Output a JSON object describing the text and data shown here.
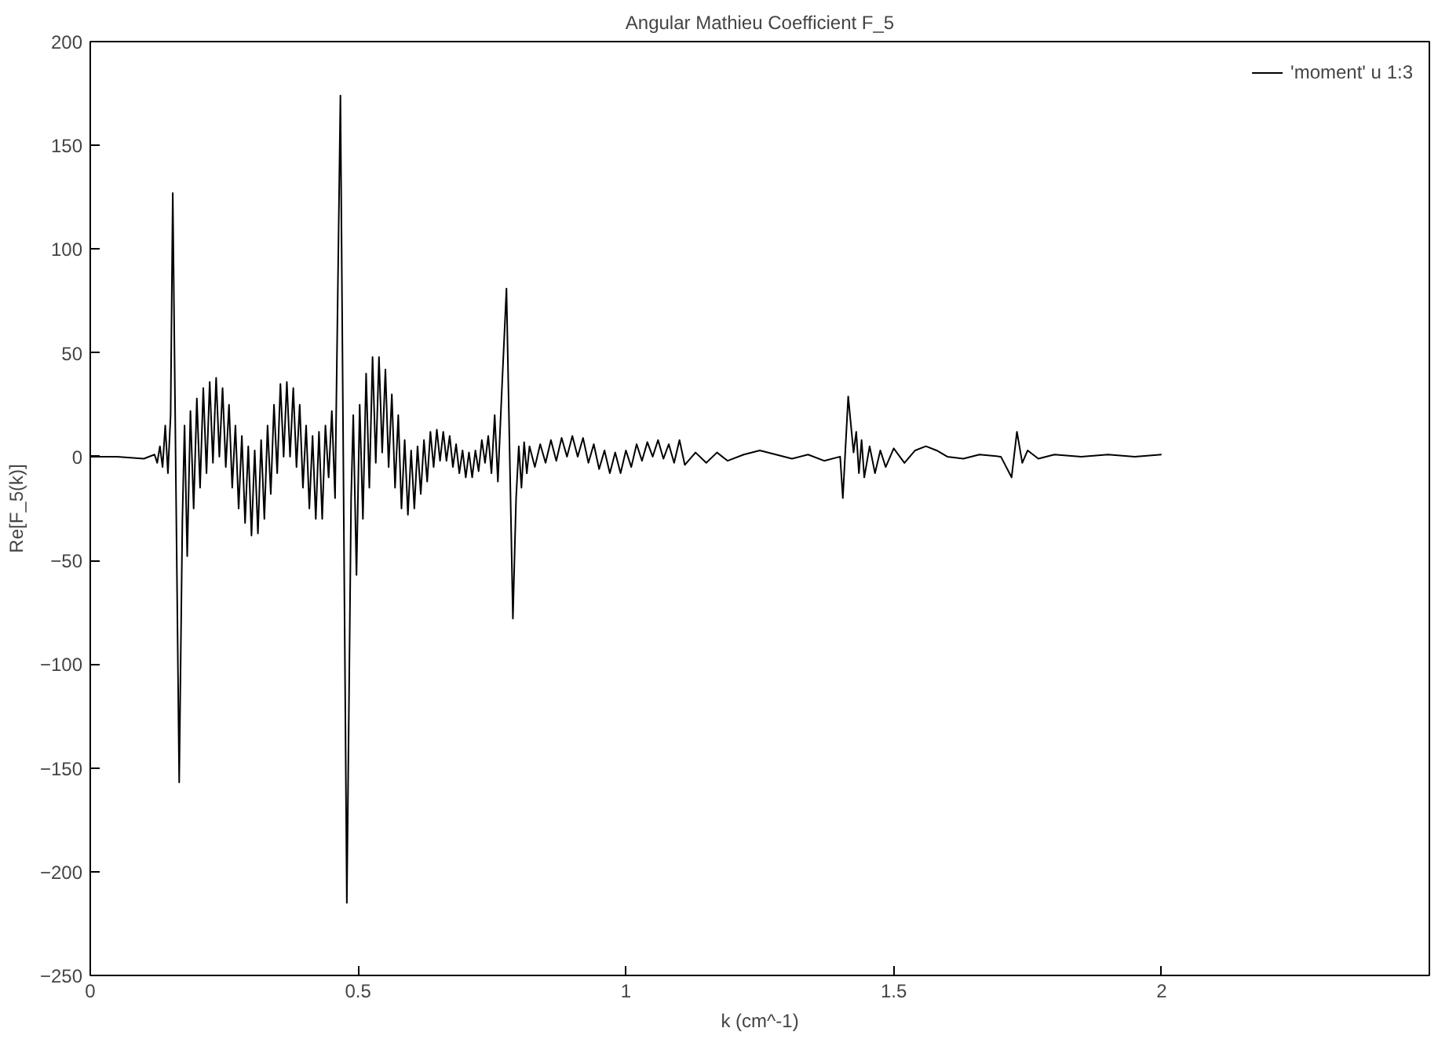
{
  "chart_data": {
    "type": "line",
    "title": "Angular Mathieu Coefficient F_5",
    "xlabel": "k (cm^-1)",
    "ylabel": "Re[F_5(k)]",
    "xlim": [
      0,
      2.5
    ],
    "xticks": [
      0,
      0.5,
      1,
      1.5,
      2
    ],
    "ylim": [
      -250,
      200
    ],
    "yticks": [
      -250,
      -200,
      -150,
      -100,
      -50,
      0,
      50,
      100,
      150,
      200
    ],
    "grid": false,
    "legend": "top right",
    "marker": "none",
    "line_style": "solid",
    "series": [
      {
        "name": "'moment' u 1:3",
        "color": "#000000",
        "x": [
          0,
          0.05,
          0.1,
          0.12,
          0.125,
          0.13,
          0.135,
          0.14,
          0.145,
          0.15,
          0.154,
          0.166,
          0.172,
          0.176,
          0.181,
          0.187,
          0.193,
          0.199,
          0.205,
          0.211,
          0.217,
          0.223,
          0.229,
          0.235,
          0.241,
          0.247,
          0.253,
          0.259,
          0.265,
          0.271,
          0.277,
          0.283,
          0.289,
          0.295,
          0.301,
          0.307,
          0.313,
          0.319,
          0.325,
          0.331,
          0.337,
          0.343,
          0.349,
          0.355,
          0.361,
          0.367,
          0.373,
          0.379,
          0.385,
          0.391,
          0.397,
          0.403,
          0.409,
          0.415,
          0.421,
          0.427,
          0.433,
          0.439,
          0.445,
          0.451,
          0.457,
          0.467,
          0.479,
          0.487,
          0.491,
          0.497,
          0.503,
          0.509,
          0.515,
          0.521,
          0.527,
          0.533,
          0.539,
          0.545,
          0.551,
          0.557,
          0.563,
          0.569,
          0.575,
          0.581,
          0.587,
          0.593,
          0.599,
          0.605,
          0.611,
          0.617,
          0.623,
          0.629,
          0.635,
          0.641,
          0.647,
          0.653,
          0.659,
          0.665,
          0.671,
          0.677,
          0.683,
          0.689,
          0.695,
          0.701,
          0.707,
          0.713,
          0.719,
          0.725,
          0.731,
          0.737,
          0.743,
          0.749,
          0.755,
          0.761,
          0.768,
          0.777,
          0.789,
          0.795,
          0.8,
          0.805,
          0.81,
          0.815,
          0.82,
          0.83,
          0.84,
          0.85,
          0.86,
          0.87,
          0.88,
          0.89,
          0.9,
          0.91,
          0.92,
          0.93,
          0.94,
          0.95,
          0.96,
          0.97,
          0.98,
          0.99,
          1.0,
          1.01,
          1.02,
          1.03,
          1.04,
          1.05,
          1.06,
          1.07,
          1.08,
          1.09,
          1.1,
          1.11,
          1.13,
          1.15,
          1.17,
          1.19,
          1.22,
          1.25,
          1.28,
          1.31,
          1.34,
          1.37,
          1.4,
          1.405,
          1.415,
          1.425,
          1.43,
          1.435,
          1.44,
          1.445,
          1.455,
          1.465,
          1.475,
          1.485,
          1.5,
          1.52,
          1.54,
          1.56,
          1.58,
          1.6,
          1.63,
          1.66,
          1.7,
          1.72,
          1.73,
          1.74,
          1.75,
          1.77,
          1.8,
          1.85,
          1.9,
          1.95,
          2.0
        ],
        "values": [
          0,
          0,
          -1,
          1,
          -3,
          5,
          -5,
          15,
          -8,
          20,
          127,
          -157,
          -30,
          15,
          -48,
          22,
          -25,
          28,
          -15,
          33,
          -8,
          36,
          -3,
          38,
          0,
          33,
          -5,
          25,
          -15,
          15,
          -25,
          10,
          -32,
          5,
          -38,
          3,
          -37,
          8,
          -30,
          15,
          -18,
          25,
          -8,
          35,
          0,
          36,
          0,
          33,
          -5,
          25,
          -15,
          15,
          -25,
          10,
          -30,
          12,
          -30,
          15,
          -10,
          22,
          -20,
          174,
          -215,
          -20,
          20,
          -57,
          25,
          -30,
          40,
          -15,
          48,
          -3,
          48,
          2,
          42,
          -5,
          30,
          -15,
          20,
          -25,
          8,
          -28,
          3,
          -25,
          5,
          -18,
          8,
          -12,
          12,
          -5,
          13,
          -2,
          12,
          -2,
          10,
          -5,
          6,
          -8,
          3,
          -10,
          2,
          -10,
          3,
          -7,
          8,
          -3,
          10,
          -8,
          20,
          -12,
          30,
          81,
          -78,
          -20,
          5,
          -15,
          7,
          -8,
          5,
          -5,
          6,
          -3,
          8,
          -2,
          9,
          0,
          10,
          0,
          9,
          -3,
          6,
          -6,
          3,
          -8,
          2,
          -8,
          3,
          -5,
          6,
          -2,
          7,
          0,
          8,
          -1,
          6,
          -3,
          8,
          -4,
          2,
          -3,
          2,
          -2,
          1,
          3,
          1,
          -1,
          1,
          -2,
          0,
          -20,
          29,
          2,
          12,
          -8,
          8,
          -10,
          5,
          -8,
          3,
          -5,
          4,
          -3,
          3,
          5,
          3,
          0,
          -1,
          1,
          0,
          -10,
          12,
          -3,
          3,
          -1,
          1,
          0,
          1,
          0,
          1
        ]
      }
    ]
  }
}
